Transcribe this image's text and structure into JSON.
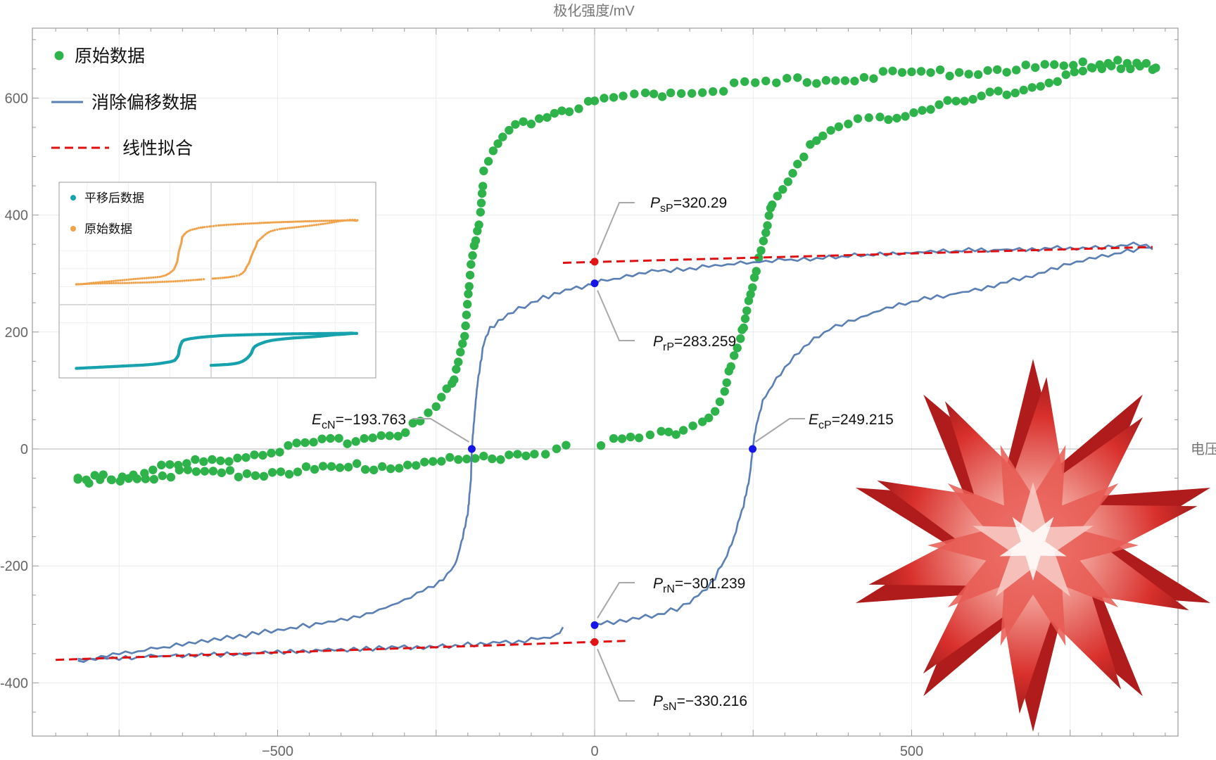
{
  "chart_data": {
    "type": "scatter",
    "title": "",
    "ylabel": "极化强度/mV",
    "xlabel": "电压",
    "xlim": [
      -900,
      920
    ],
    "ylim": [
      -490,
      720
    ],
    "x_ticks": [
      {
        "value": -500,
        "label": "−500"
      },
      {
        "value": 0,
        "label": "0"
      },
      {
        "value": 500,
        "label": "500"
      }
    ],
    "y_ticks": [
      {
        "value": 600,
        "label": "600"
      },
      {
        "value": 400,
        "label": "400"
      },
      {
        "value": 200,
        "label": "200"
      },
      {
        "value": 0,
        "label": "0"
      },
      {
        "value": -200,
        "label": "-200"
      },
      {
        "value": -400,
        "label": "-400"
      }
    ],
    "grid": true,
    "legend_position": "top-left",
    "colors": {
      "raw": "#2db34a",
      "corrected": "#5a7fb5",
      "fit": "#e01010",
      "marker_blue": "#1515e8",
      "marker_red": "#e01515",
      "callout": "#a8a8a8"
    },
    "legend": [
      {
        "key": "raw",
        "label": "原始数据",
        "symbol": "dot"
      },
      {
        "key": "corrected",
        "label": "消除偏移数据",
        "symbol": "line"
      },
      {
        "key": "fit",
        "label": "线性拟合",
        "symbol": "dashed"
      }
    ],
    "series": [
      {
        "key": "raw",
        "kind": "scatter",
        "branches": [
          [
            [
              -815,
              -52
            ],
            [
              -780,
              -52
            ],
            [
              -745,
              -45
            ],
            [
              -710,
              -37
            ],
            [
              -670,
              -30
            ],
            [
              -630,
              -24
            ],
            [
              -590,
              -17
            ],
            [
              -550,
              -10
            ],
            [
              -510,
              -3
            ],
            [
              -470,
              4
            ],
            [
              -430,
              10
            ],
            [
              -390,
              16
            ],
            [
              -350,
              22
            ],
            [
              -310,
              29
            ],
            [
              -275,
              46
            ],
            [
              -250,
              72
            ],
            [
              -225,
              110
            ],
            [
              -205,
              195
            ],
            [
              -195,
              310
            ],
            [
              -180,
              405
            ],
            [
              -175,
              470
            ],
            [
              -160,
              505
            ],
            [
              -145,
              530
            ],
            [
              -125,
              548
            ],
            [
              -100,
              560
            ],
            [
              -75,
              572
            ],
            [
              -40,
              582
            ],
            [
              -10,
              588
            ],
            [
              0,
              590
            ],
            [
              45,
              600
            ],
            [
              80,
              605
            ],
            [
              120,
              610
            ],
            [
              170,
              615
            ],
            [
              220,
              620
            ],
            [
              270,
              624
            ],
            [
              320,
              629
            ],
            [
              380,
              634
            ],
            [
              440,
              638
            ],
            [
              500,
              641
            ],
            [
              560,
              645
            ],
            [
              620,
              648
            ],
            [
              680,
              651
            ],
            [
              740,
              654
            ],
            [
              800,
              656
            ],
            [
              860,
              656
            ],
            [
              880,
              652
            ]
          ],
          [
            [
              -815,
              -55
            ],
            [
              -775,
              -50
            ],
            [
              -735,
              -48
            ],
            [
              -695,
              -45
            ],
            [
              -655,
              -43
            ],
            [
              -615,
              -42
            ],
            [
              -575,
              -41
            ],
            [
              -535,
              -40
            ],
            [
              -495,
              -39
            ],
            [
              -455,
              -36
            ],
            [
              -415,
              -34
            ],
            [
              -375,
              -32
            ],
            [
              -335,
              -29
            ],
            [
              -295,
              -26
            ],
            [
              -255,
              -23
            ],
            [
              -215,
              -20
            ],
            [
              -175,
              -15
            ],
            [
              -135,
              -10
            ],
            [
              -95,
              -5
            ],
            [
              -60,
              0
            ],
            [
              -45,
              3
            ]
          ],
          [
            [
              10,
              10
            ],
            [
              30,
              12
            ],
            [
              70,
              18
            ],
            [
              105,
              25
            ],
            [
              140,
              35
            ],
            [
              170,
              48
            ],
            [
              190,
              70
            ],
            [
              205,
              100
            ],
            [
              215,
              140
            ],
            [
              230,
              185
            ],
            [
              240,
              240
            ],
            [
              255,
              310
            ],
            [
              270,
              365
            ],
            [
              280,
              422
            ],
            [
              305,
              462
            ],
            [
              320,
              488
            ],
            [
              340,
              516
            ],
            [
              360,
              535
            ],
            [
              385,
              548
            ],
            [
              415,
              560
            ],
            [
              450,
              568
            ],
            [
              490,
              575
            ],
            [
              530,
              583
            ],
            [
              570,
              592
            ],
            [
              610,
              600
            ],
            [
              650,
              610
            ],
            [
              690,
              620
            ],
            [
              730,
              632
            ],
            [
              770,
              645
            ],
            [
              810,
              655
            ],
            [
              840,
              662
            ],
            [
              870,
              662
            ],
            [
              885,
              658
            ]
          ]
        ]
      },
      {
        "key": "corrected",
        "kind": "line",
        "branches": [
          [
            [
              -815,
              -362
            ],
            [
              -760,
              -352
            ],
            [
              -700,
              -343
            ],
            [
              -640,
              -333
            ],
            [
              -580,
              -323
            ],
            [
              -520,
              -313
            ],
            [
              -460,
              -303
            ],
            [
              -410,
              -295
            ],
            [
              -360,
              -282
            ],
            [
              -320,
              -268
            ],
            [
              -280,
              -248
            ],
            [
              -245,
              -228
            ],
            [
              -220,
              -200
            ],
            [
              -210,
              -160
            ],
            [
              -200,
              -110
            ],
            [
              -195,
              -50
            ],
            [
              -193.8,
              0
            ],
            [
              -190,
              50
            ],
            [
              -185,
              110
            ],
            [
              -180,
              145
            ],
            [
              -175,
              180
            ],
            [
              -165,
              205
            ],
            [
              -145,
              225
            ],
            [
              -120,
              240
            ],
            [
              -90,
              255
            ],
            [
              -55,
              268
            ],
            [
              -20,
              278
            ],
            [
              0,
              283.3
            ],
            [
              20,
              288
            ],
            [
              40,
              294
            ],
            [
              80,
              303
            ],
            [
              150,
              309
            ],
            [
              220,
              316
            ],
            [
              300,
              323
            ],
            [
              400,
              330
            ],
            [
              500,
              336
            ],
            [
              600,
              340
            ],
            [
              700,
              342
            ],
            [
              800,
              345
            ],
            [
              850,
              350
            ],
            [
              880,
              343
            ]
          ],
          [
            [
              -815,
              -360
            ],
            [
              -760,
              -358
            ],
            [
              -700,
              -355
            ],
            [
              -640,
              -353
            ],
            [
              -580,
              -351
            ],
            [
              -520,
              -349
            ],
            [
              -460,
              -346
            ],
            [
              -400,
              -344
            ],
            [
              -340,
              -341
            ],
            [
              -280,
              -339
            ],
            [
              -220,
              -336
            ],
            [
              -160,
              -332
            ],
            [
              -100,
              -327
            ],
            [
              -60,
              -318
            ],
            [
              -50,
              -305
            ]
          ],
          [
            [
              0,
              -301.2
            ],
            [
              20,
              -298
            ],
            [
              60,
              -290
            ],
            [
              100,
              -283
            ],
            [
              130,
              -273
            ],
            [
              150,
              -262
            ],
            [
              170,
              -245
            ],
            [
              190,
              -220
            ],
            [
              205,
              -190
            ],
            [
              220,
              -150
            ],
            [
              235,
              -95
            ],
            [
              245,
              -45
            ],
            [
              249.2,
              0
            ],
            [
              255,
              40
            ],
            [
              265,
              80
            ],
            [
              280,
              110
            ],
            [
              300,
              140
            ],
            [
              330,
              175
            ],
            [
              370,
              205
            ],
            [
              410,
              222
            ],
            [
              450,
              237
            ],
            [
              500,
              252
            ],
            [
              550,
              262
            ],
            [
              600,
              272
            ],
            [
              650,
              285
            ],
            [
              700,
              300
            ],
            [
              750,
              318
            ],
            [
              800,
              328
            ],
            [
              840,
              338
            ],
            [
              870,
              345
            ],
            [
              880,
              344
            ]
          ]
        ]
      },
      {
        "key": "fit",
        "kind": "dashed",
        "branches": [
          [
            [
              -50,
              318.3
            ],
            [
              880,
              345.4
            ]
          ],
          [
            [
              -850,
              -360.6
            ],
            [
              50,
              -328.2
            ]
          ]
        ]
      }
    ],
    "annotations": [
      {
        "key": "psp",
        "x": 0,
        "y": 320.29,
        "color": "red",
        "sym": "P",
        "sub": "sP",
        "val": "=320.29"
      },
      {
        "key": "prp",
        "x": 0,
        "y": 283.259,
        "color": "blue",
        "sym": "P",
        "sub": "rP",
        "val": "=283.259"
      },
      {
        "key": "ecn",
        "x": -193.763,
        "y": 0,
        "color": "blue",
        "sym": "E",
        "sub": "cN",
        "val": "=−193.763"
      },
      {
        "key": "ecp",
        "x": 249.215,
        "y": 0,
        "color": "blue",
        "sym": "E",
        "sub": "cP",
        "val": "=249.215"
      },
      {
        "key": "prn",
        "x": 0,
        "y": -301.239,
        "color": "blue",
        "sym": "P",
        "sub": "rN",
        "val": "=−301.239"
      },
      {
        "key": "psn",
        "x": 0,
        "y": -330.216,
        "color": "red",
        "sym": "P",
        "sub": "sN",
        "val": "=−330.216"
      }
    ],
    "inset": {
      "legend": [
        {
          "label": "平移后数据",
          "color": "#17a2ad"
        },
        {
          "label": "原始数据",
          "color": "#f0a24a"
        }
      ]
    }
  },
  "logo": {
    "name": "wolfram-spikey-logo",
    "color": "#d92b2b"
  }
}
